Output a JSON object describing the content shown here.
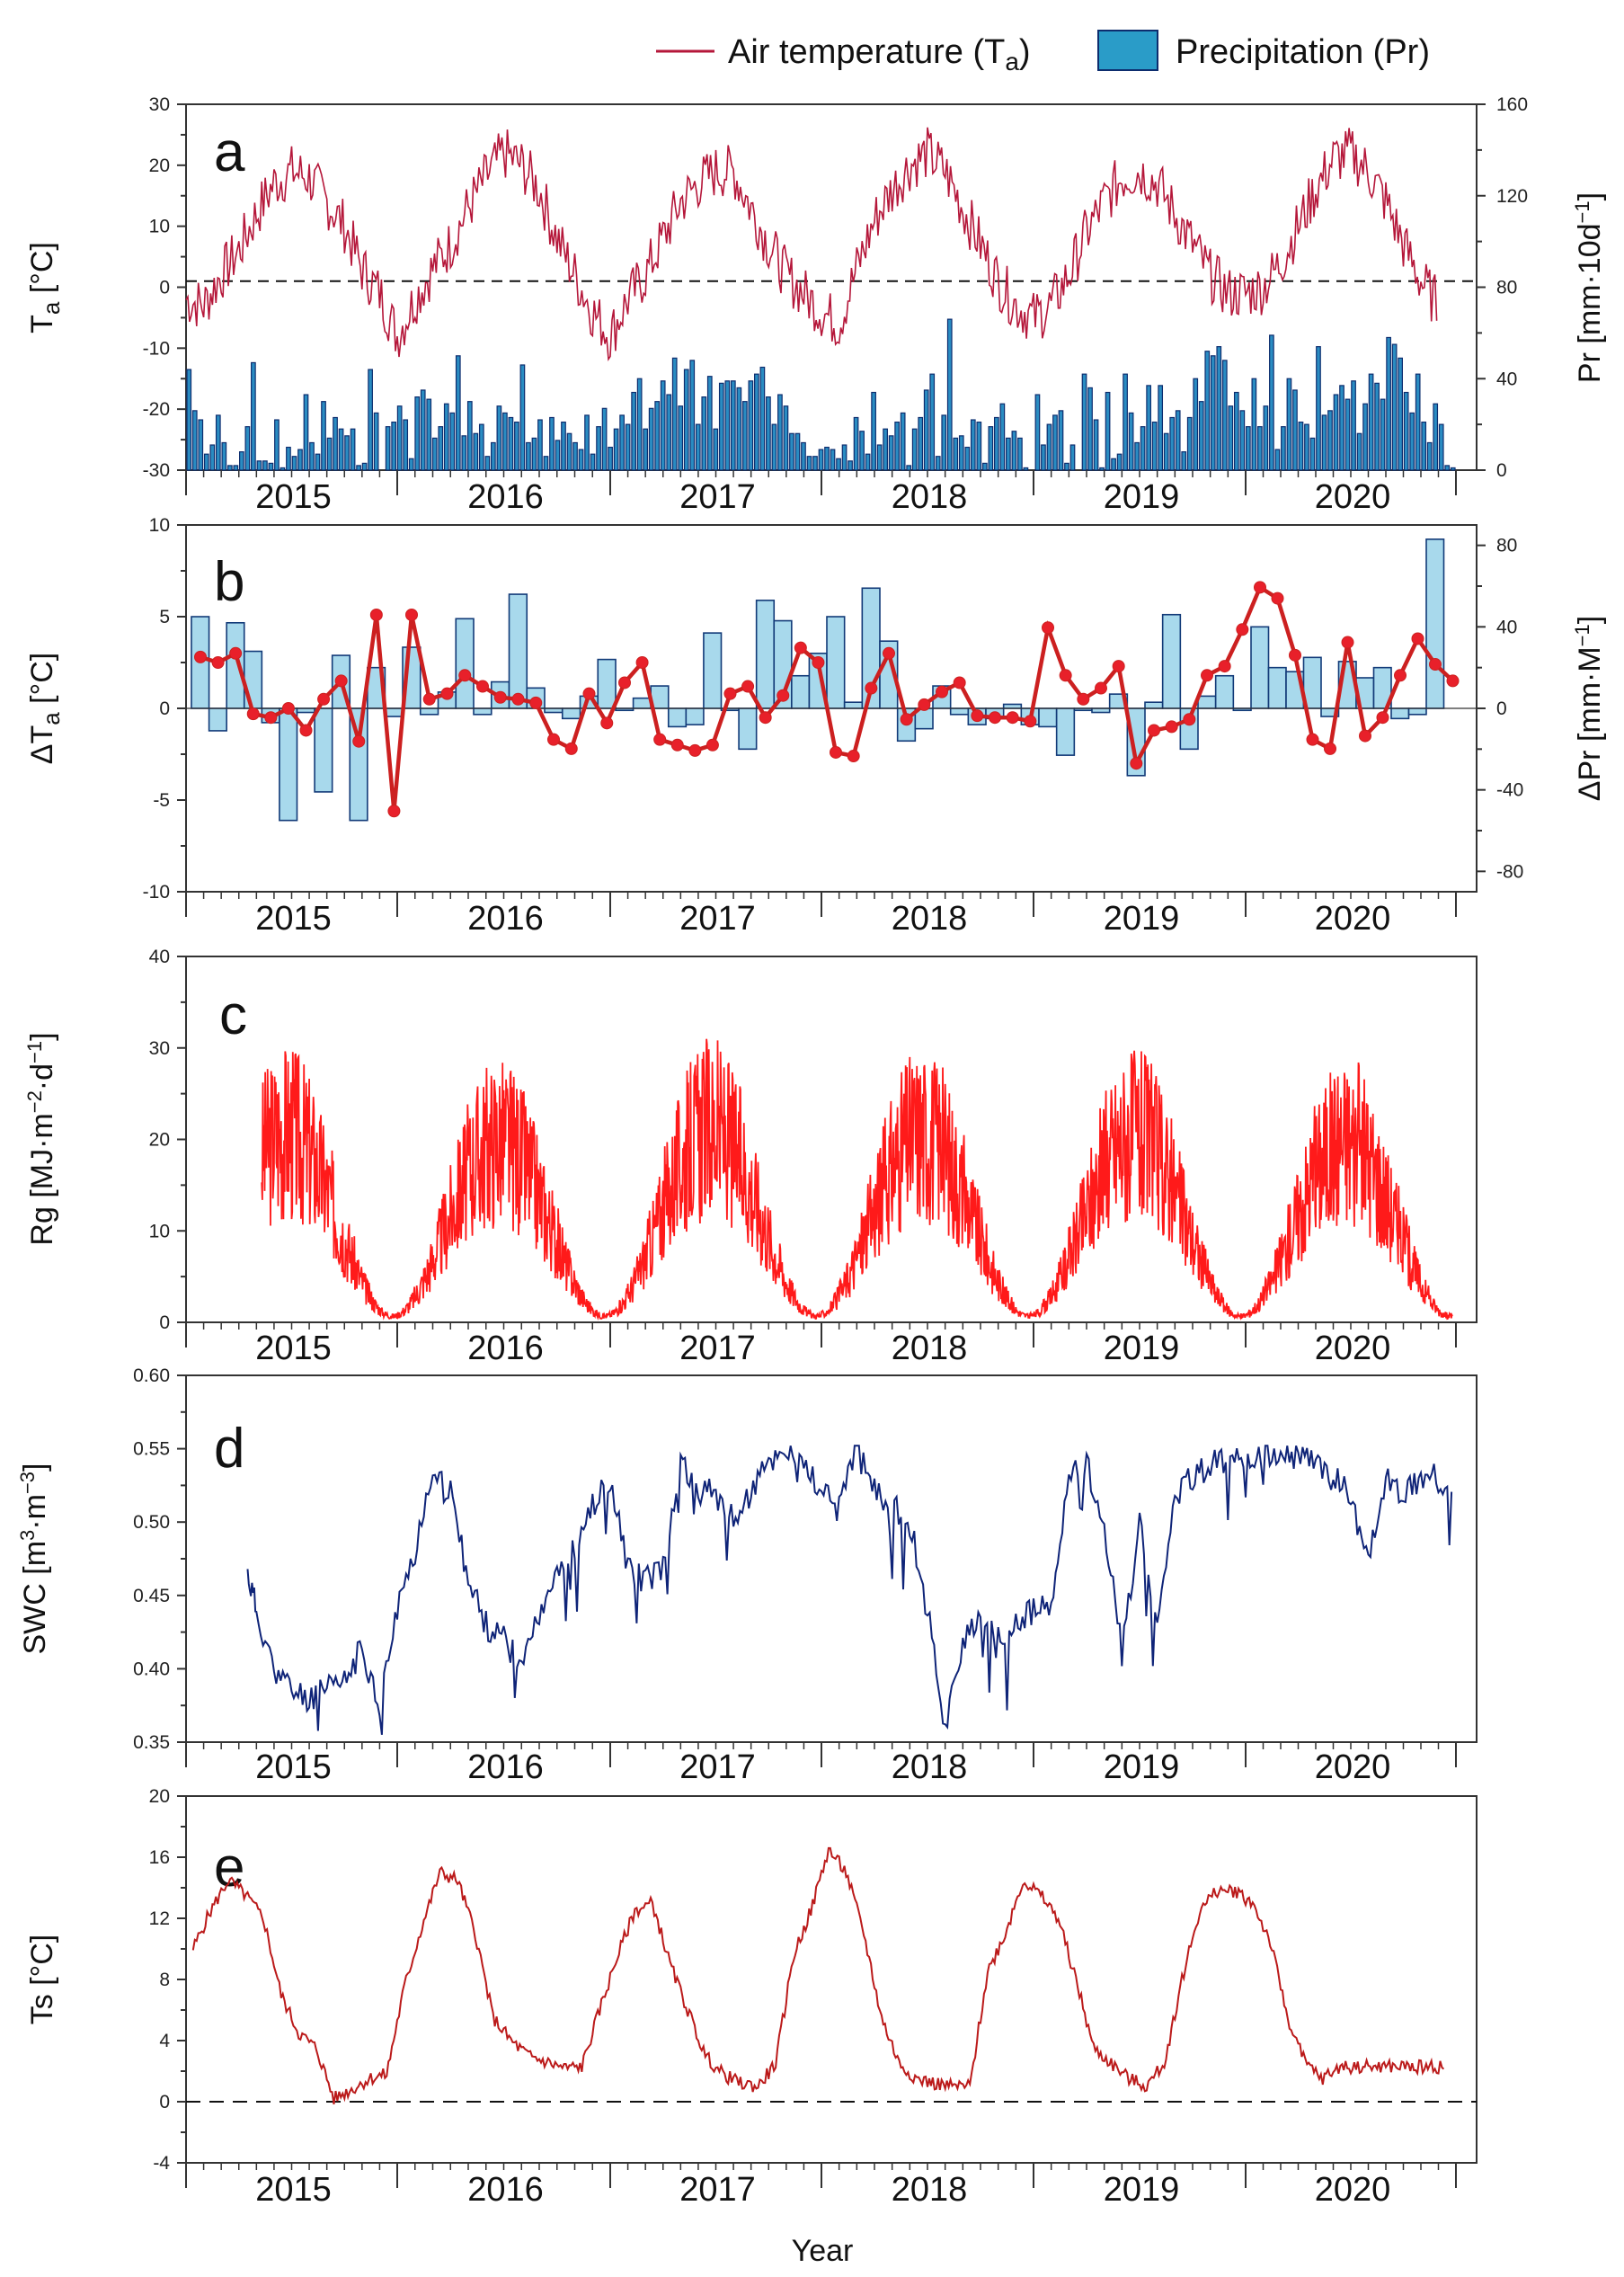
{
  "legend": {
    "ta_label": "Air temperature (T",
    "ta_sub": "a",
    "ta_close": ")",
    "pr_label": "Precipitation (Pr)"
  },
  "x_axis": {
    "label": "Year",
    "years": [
      "2015",
      "2016",
      "2017",
      "2018",
      "2019",
      "2020"
    ]
  },
  "colors": {
    "ta_line": "#b5173a",
    "pr_bar": "#2a8cc2",
    "pr_bar_edge": "#0d2d6e",
    "dpr_bar": "#a8d9ec",
    "dpr_edge": "#123a78",
    "dta_line": "#cc2020",
    "dta_marker": "#e8202a",
    "rg_line": "#ff1a1a",
    "swc_line": "#0f2478",
    "ts_line": "#bb1a1a"
  },
  "panels": {
    "a": {
      "letter": "a",
      "ylabel": "T",
      "ylabel_sub": "a",
      "ylabel_unit": " [°C]",
      "y2label": "Pr [mm·10d",
      "y2label_sup": "−1",
      "y2label_close": "]",
      "yticks": [
        "30",
        "20",
        "10",
        "0",
        "-10",
        "-20",
        "-30"
      ],
      "y2ticks": [
        "160",
        "120",
        "80",
        "40",
        "0"
      ]
    },
    "b": {
      "letter": "b",
      "ylabel": "ΔT",
      "ylabel_sub": "a",
      "ylabel_unit": " [°C]",
      "y2label": "ΔPr [mm·M",
      "y2label_sup": "−1",
      "y2label_close": "]",
      "yticks": [
        "10",
        "5",
        "0",
        "-5",
        "-10"
      ],
      "y2ticks": [
        "80",
        "40",
        "0",
        "-40",
        "-80"
      ]
    },
    "c": {
      "letter": "c",
      "ylabel": "Rg [MJ·m",
      "ylabel_sup1": "−2",
      "ylabel_mid": "·d",
      "ylabel_sup2": "−1",
      "ylabel_close": "]",
      "yticks": [
        "40",
        "30",
        "20",
        "10",
        "0"
      ]
    },
    "d": {
      "letter": "d",
      "ylabel": "SWC [m",
      "ylabel_sup1": "3",
      "ylabel_mid": "·m",
      "ylabel_sup2": "−3",
      "ylabel_close": "]",
      "yticks": [
        "0.60",
        "0.55",
        "0.50",
        "0.45",
        "0.40",
        "0.35"
      ]
    },
    "e": {
      "letter": "e",
      "ylabel": "Ts [°C]",
      "yticks": [
        "20",
        "16",
        "12",
        "8",
        "4",
        "0",
        "-4"
      ]
    }
  },
  "chart_data": [
    {
      "panel": "a",
      "type": "line",
      "x_unit": "month index from Jan 2015 (0–72)",
      "series": [
        {
          "name": "Air temperature (Ta)",
          "axis": "left",
          "ylim": [
            -30,
            30
          ],
          "x": [
            0,
            1,
            2,
            3,
            4,
            5,
            6,
            7,
            8,
            9,
            10,
            11,
            12,
            13,
            14,
            15,
            16,
            17,
            18,
            19,
            20,
            21,
            22,
            23,
            24,
            25,
            26,
            27,
            28,
            29,
            30,
            31,
            32,
            33,
            34,
            35,
            36,
            37,
            38,
            39,
            40,
            41,
            42,
            43,
            44,
            45,
            46,
            47,
            48,
            49,
            50,
            51,
            52,
            53,
            54,
            55,
            56,
            57,
            58,
            59,
            60,
            61,
            62,
            63,
            64,
            65,
            66,
            67,
            68,
            69,
            70,
            71
          ],
          "values": [
            -2,
            -3,
            2,
            6,
            12,
            17,
            19,
            18,
            14,
            10,
            3,
            -1,
            -8,
            -2,
            3,
            7,
            13,
            18,
            22,
            20,
            16,
            8,
            2,
            -4,
            -8,
            -2,
            2,
            8,
            14,
            17,
            19,
            19,
            13,
            7,
            2,
            -1,
            -4,
            -6,
            3,
            11,
            16,
            20,
            22,
            19,
            13,
            7,
            1,
            -3,
            -5,
            -3,
            2,
            9,
            14,
            18,
            19,
            17,
            12,
            7,
            2,
            -1,
            -1,
            0,
            4,
            10,
            16,
            21,
            22,
            19,
            14,
            7,
            1,
            -3
          ]
        },
        {
          "name": "Precipitation (Pr)",
          "axis": "right",
          "ylim": [
            0,
            160
          ],
          "x_unit": "10-day period index (0–216)",
          "values": [
            44,
            26,
            22,
            7,
            11,
            24,
            12,
            2,
            2,
            8,
            19,
            47,
            4,
            4,
            3,
            22,
            1,
            10,
            6,
            9,
            33,
            12,
            7,
            30,
            14,
            23,
            18,
            15,
            18,
            2,
            3,
            44,
            25,
            0,
            19,
            21,
            28,
            22,
            5,
            32,
            35,
            31,
            14,
            19,
            29,
            25,
            50,
            15,
            30,
            16,
            20,
            6,
            12,
            28,
            25,
            23,
            21,
            46,
            12,
            14,
            22,
            6,
            23,
            13,
            21,
            16,
            12,
            9,
            24,
            7,
            19,
            27,
            10,
            18,
            24,
            20,
            34,
            40,
            18,
            27,
            30,
            39,
            33,
            49,
            28,
            44,
            48,
            20,
            32,
            41,
            18,
            38,
            39,
            39,
            36,
            30,
            39,
            42,
            45,
            32,
            20,
            33,
            28,
            16,
            16,
            12,
            6,
            6,
            9,
            10,
            9,
            5,
            11,
            4,
            23,
            17,
            7,
            34,
            11,
            18,
            15,
            21,
            25,
            2,
            18,
            23,
            35,
            42,
            6,
            24,
            66,
            14,
            15,
            10,
            22,
            21,
            3,
            19,
            23,
            29,
            14,
            17,
            14,
            1,
            0,
            33,
            11,
            20,
            24,
            26,
            3,
            11,
            0,
            42,
            36,
            22,
            1,
            34,
            5,
            7,
            42,
            25,
            12,
            19,
            37,
            21,
            37,
            16,
            23,
            26,
            8,
            23,
            40,
            30,
            52,
            50,
            54,
            48,
            28,
            34,
            26,
            19,
            40,
            19,
            28,
            59,
            9,
            19,
            40,
            35,
            21,
            20,
            14,
            54,
            24,
            26,
            33,
            37,
            31,
            39,
            16,
            29,
            42,
            38,
            31,
            58,
            55,
            49,
            34,
            25,
            42,
            21,
            12,
            29,
            20,
            2,
            1
          ]
        }
      ],
      "yticks_left": [
        30,
        20,
        10,
        0,
        -10,
        -20,
        -30
      ],
      "yticks_right": [
        160,
        120,
        80,
        40,
        0
      ],
      "reference_line": {
        "y": 1,
        "style": "dashed"
      }
    },
    {
      "panel": "b",
      "type": "bar+line",
      "x_unit": "month index from Jan 2015",
      "series": [
        {
          "name": "ΔPr",
          "axis": "right",
          "ylim": [
            -90,
            90
          ],
          "values": [
            45,
            -11,
            42,
            28,
            -7,
            -55,
            -2,
            -41,
            26,
            -55,
            20,
            -4,
            30,
            -3,
            8,
            44,
            -3,
            13,
            56,
            10,
            -2,
            -5,
            6,
            24,
            -1,
            5,
            11,
            -9,
            -8,
            37,
            -1,
            -20,
            53,
            43,
            16,
            27,
            45,
            3,
            59,
            33,
            -16,
            -10,
            11,
            -3,
            -8,
            -5,
            2,
            -8,
            -9,
            -23,
            -1,
            -2,
            7,
            -33,
            3,
            46,
            -20,
            6,
            16,
            -1,
            40,
            20,
            18,
            25,
            -4,
            23,
            15,
            20,
            -5,
            -3,
            83,
            -1
          ]
        },
        {
          "name": "ΔTa",
          "axis": "left",
          "ylim": [
            -10,
            10
          ],
          "values": [
            2.8,
            2.5,
            3.0,
            -0.3,
            -0.5,
            0.0,
            -1.2,
            0.5,
            1.5,
            -1.8,
            5.1,
            -5.6,
            5.1,
            0.5,
            0.8,
            1.8,
            1.2,
            0.6,
            0.5,
            0.3,
            -1.7,
            -2.2,
            0.8,
            -0.8,
            1.4,
            2.5,
            -1.7,
            -2.0,
            -2.3,
            -2.0,
            0.8,
            1.2,
            -0.5,
            0.7,
            3.3,
            2.5,
            -2.4,
            -2.6,
            1.1,
            3.0,
            -0.6,
            0.2,
            0.9,
            1.4,
            -0.4,
            -0.5,
            -0.5,
            -0.7,
            4.4,
            1.8,
            0.5,
            1.1,
            2.3,
            -3.0,
            -1.2,
            -1.0,
            -0.6,
            1.8,
            2.3,
            4.3,
            6.6,
            6.0,
            2.9,
            -1.7,
            -2.2,
            3.6,
            -1.5,
            -0.5,
            1.8,
            3.8,
            2.4,
            1.5
          ]
        }
      ],
      "yticks_left": [
        10,
        5,
        0,
        -5,
        -10
      ],
      "yticks_right": [
        80,
        40,
        0,
        -40,
        -80
      ]
    },
    {
      "panel": "c",
      "type": "line",
      "name": "Rg",
      "ylim": [
        0,
        40
      ],
      "yticks": [
        40,
        30,
        20,
        10,
        0
      ],
      "description_of_values": "daily global radiation, seasonal cycle peaking each summer near 29–31 MJ·m⁻²·d⁻¹ and falling to ~1 in winter",
      "summer_peaks": [
        30.9,
        29.4,
        31.2,
        30.7,
        30.3,
        29.6
      ],
      "winter_min": 0.5
    },
    {
      "panel": "d",
      "type": "line",
      "name": "SWC",
      "ylim": [
        0.35,
        0.6
      ],
      "yticks": [
        0.6,
        0.55,
        0.5,
        0.45,
        0.4,
        0.35
      ],
      "x_month": [
        3.5,
        4,
        5,
        6,
        7,
        8,
        9,
        10,
        11,
        12,
        13,
        14,
        15,
        16,
        17,
        18,
        19,
        20,
        21,
        22,
        23,
        24,
        25,
        26,
        27,
        28,
        29,
        30,
        31,
        32,
        33,
        34,
        35,
        36,
        37,
        38,
        39,
        40,
        41,
        42,
        43,
        44,
        45,
        46,
        47,
        48,
        49,
        50,
        51,
        52,
        53,
        54,
        55,
        56,
        57,
        58,
        59,
        60,
        61,
        62,
        63,
        64,
        65,
        66,
        67,
        68,
        69,
        70,
        71,
        72
      ],
      "values": [
        0.465,
        0.44,
        0.4,
        0.385,
        0.38,
        0.385,
        0.39,
        0.415,
        0.375,
        0.44,
        0.48,
        0.54,
        0.52,
        0.46,
        0.43,
        0.42,
        0.4,
        0.44,
        0.47,
        0.48,
        0.51,
        0.53,
        0.47,
        0.46,
        0.47,
        0.54,
        0.52,
        0.52,
        0.5,
        0.52,
        0.54,
        0.55,
        0.54,
        0.52,
        0.515,
        0.55,
        0.52,
        0.51,
        0.5,
        0.44,
        0.36,
        0.42,
        0.43,
        0.42,
        0.43,
        0.44,
        0.44,
        0.53,
        0.54,
        0.5,
        0.41,
        0.5,
        0.43,
        0.52,
        0.53,
        0.54,
        0.54,
        0.545,
        0.545,
        0.545,
        0.545,
        0.54,
        0.53,
        0.52,
        0.47,
        0.53,
        0.52,
        0.53,
        0.53,
        0.53
      ]
    },
    {
      "panel": "e",
      "type": "line",
      "name": "Ts",
      "ylim": [
        -4,
        20
      ],
      "yticks": [
        20,
        16,
        12,
        8,
        4,
        0,
        -4
      ],
      "reference_line": {
        "y": 0,
        "style": "dashed"
      },
      "x_month": [
        0,
        1,
        2,
        3,
        4,
        5,
        6,
        7,
        8,
        9,
        10,
        11,
        12,
        13,
        14,
        15,
        16,
        17,
        18,
        19,
        20,
        21,
        22,
        23,
        24,
        25,
        26,
        27,
        28,
        29,
        30,
        31,
        32,
        33,
        34,
        35,
        36,
        37,
        38,
        39,
        40,
        41,
        42,
        43,
        44,
        45,
        46,
        47,
        48,
        49,
        50,
        51,
        52,
        53,
        54,
        55,
        56,
        57,
        58,
        59,
        60,
        61,
        62,
        63,
        64,
        65,
        66,
        67,
        68,
        69,
        70,
        71
      ],
      "values": [
        10.0,
        12.5,
        14.5,
        13.5,
        12.0,
        7.0,
        4.5,
        3.5,
        0.2,
        0.8,
        1.5,
        1.8,
        7.5,
        11.5,
        15.0,
        14.5,
        11.0,
        5.5,
        4.0,
        3.0,
        2.6,
        2.2,
        2.3,
        6.0,
        9.5,
        12.5,
        13.0,
        9.0,
        6.0,
        3.0,
        1.8,
        1.2,
        1.0,
        2.5,
        9.5,
        12.5,
        16.5,
        15.0,
        11.0,
        5.5,
        2.5,
        1.5,
        1.2,
        1.0,
        1.0,
        8.5,
        11.0,
        14.5,
        13.5,
        12.0,
        8.0,
        3.5,
        2.5,
        1.5,
        1.0,
        2.5,
        8.0,
        12.5,
        13.8,
        13.8,
        13.0,
        10.5,
        5.5,
        2.5,
        1.5,
        2.3,
        2.3,
        2.3,
        2.3,
        2.3,
        2.3,
        2.3
      ]
    }
  ]
}
